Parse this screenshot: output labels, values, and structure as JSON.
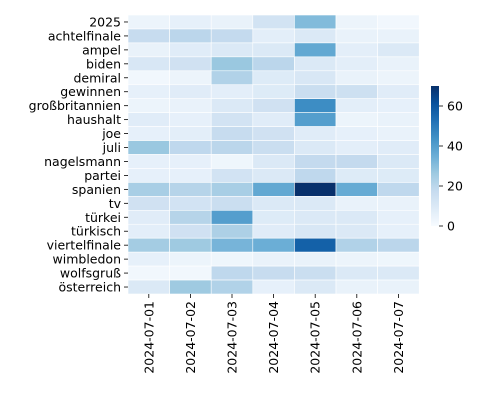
{
  "chart_data": {
    "type": "heatmap",
    "title": "",
    "xlabel": "",
    "ylabel": "",
    "x": [
      "2024-07-01",
      "2024-07-02",
      "2024-07-03",
      "2024-07-04",
      "2024-07-05",
      "2024-07-06",
      "2024-07-07"
    ],
    "y": [
      "2025",
      "achtelfinale",
      "ampel",
      "biden",
      "demiral",
      "gewinnen",
      "großbritannien",
      "haushalt",
      "joe",
      "juli",
      "nagelsmann",
      "partei",
      "spanien",
      "tv",
      "türkei",
      "türkisch",
      "viertelfinale",
      "wimbledon",
      "wolfsgruß",
      "österreich"
    ],
    "values": [
      [
        4,
        6,
        5,
        13,
        31,
        4,
        2
      ],
      [
        17,
        20,
        18,
        7,
        10,
        5,
        5
      ],
      [
        5,
        8,
        10,
        10,
        37,
        7,
        10
      ],
      [
        11,
        14,
        27,
        20,
        10,
        7,
        5
      ],
      [
        2,
        4,
        22,
        9,
        11,
        5,
        4
      ],
      [
        6,
        8,
        7,
        9,
        16,
        15,
        8
      ],
      [
        4,
        5,
        10,
        14,
        45,
        7,
        6
      ],
      [
        8,
        6,
        13,
        8,
        40,
        4,
        5
      ],
      [
        6,
        7,
        17,
        14,
        8,
        6,
        5
      ],
      [
        27,
        19,
        20,
        16,
        10,
        7,
        8
      ],
      [
        6,
        6,
        3,
        10,
        18,
        18,
        10
      ],
      [
        6,
        6,
        13,
        10,
        19,
        9,
        9
      ],
      [
        24,
        21,
        24,
        37,
        70,
        36,
        19
      ],
      [
        14,
        13,
        16,
        10,
        10,
        5,
        5
      ],
      [
        8,
        21,
        40,
        9,
        10,
        10,
        6
      ],
      [
        7,
        14,
        23,
        8,
        11,
        10,
        6
      ],
      [
        25,
        26,
        33,
        35,
        57,
        22,
        20
      ],
      [
        6,
        4,
        3,
        5,
        5,
        4,
        3
      ],
      [
        2,
        2,
        19,
        17,
        16,
        10,
        10
      ],
      [
        10,
        26,
        22,
        6,
        10,
        5,
        5
      ]
    ],
    "colorbar": {
      "range": [
        0,
        70
      ],
      "ticks": [
        0,
        20,
        40,
        60
      ]
    },
    "colormap": "Blues",
    "colormap_stops": [
      "#f7fbff",
      "#deebf7",
      "#c6dbef",
      "#9ecae1",
      "#6baed6",
      "#4292c6",
      "#2171b5",
      "#08519c",
      "#08306b"
    ],
    "grid": true,
    "gridline_color": "#ffffff",
    "legend": "colorbar-right"
  }
}
